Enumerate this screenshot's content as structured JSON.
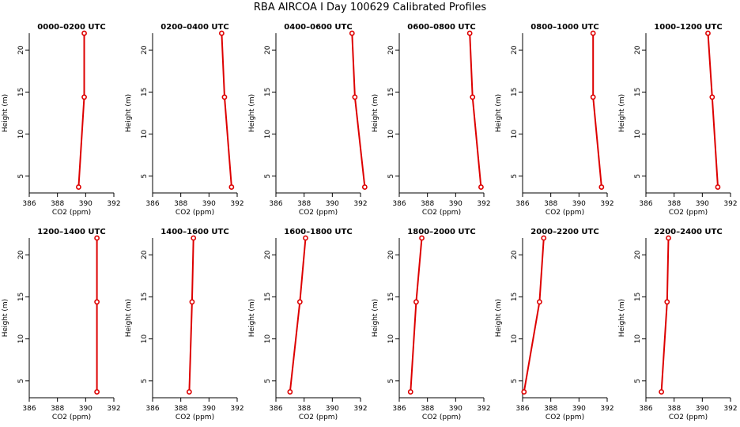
{
  "figure": {
    "title": "RBA AIRCOA I  Day 100629  Calibrated Profiles"
  },
  "colors": {
    "series": "#dd0000",
    "axis": "#000000",
    "background": "#ffffff"
  },
  "chart_data": [
    {
      "type": "line",
      "title": "0000–0200 UTC",
      "xlabel": "CO2 (ppm)",
      "ylabel": "Height (m)",
      "xlim": [
        386,
        392
      ],
      "ylim": [
        3,
        22
      ],
      "xticks": [
        386,
        388,
        390,
        392
      ],
      "yticks": [
        5,
        10,
        15,
        20
      ],
      "grid": false,
      "points": [
        {
          "x": 389.5,
          "y": 3.7
        },
        {
          "x": 389.9,
          "y": 14.4
        },
        {
          "x": 389.9,
          "y": 22
        }
      ]
    },
    {
      "type": "line",
      "title": "0200–0400 UTC",
      "xlabel": "CO2 (ppm)",
      "ylabel": "Height (m)",
      "xlim": [
        386,
        392
      ],
      "ylim": [
        3,
        22
      ],
      "xticks": [
        386,
        388,
        390,
        392
      ],
      "yticks": [
        5,
        10,
        15,
        20
      ],
      "grid": false,
      "points": [
        {
          "x": 391.6,
          "y": 3.7
        },
        {
          "x": 391.1,
          "y": 14.4
        },
        {
          "x": 390.9,
          "y": 22
        }
      ]
    },
    {
      "type": "line",
      "title": "0400–0600 UTC",
      "xlabel": "CO2 (ppm)",
      "ylabel": "Height (m)",
      "xlim": [
        386,
        392
      ],
      "ylim": [
        3,
        22
      ],
      "xticks": [
        386,
        388,
        390,
        392
      ],
      "yticks": [
        5,
        10,
        15,
        20
      ],
      "grid": false,
      "points": [
        {
          "x": 392.3,
          "y": 3.7
        },
        {
          "x": 391.6,
          "y": 14.4
        },
        {
          "x": 391.4,
          "y": 22
        }
      ]
    },
    {
      "type": "line",
      "title": "0600–0800 UTC",
      "xlabel": "CO2 (ppm)",
      "ylabel": "Height (m)",
      "xlim": [
        386,
        392
      ],
      "ylim": [
        3,
        22
      ],
      "xticks": [
        386,
        388,
        390,
        392
      ],
      "yticks": [
        5,
        10,
        15,
        20
      ],
      "grid": false,
      "points": [
        {
          "x": 391.8,
          "y": 3.7
        },
        {
          "x": 391.2,
          "y": 14.4
        },
        {
          "x": 391.0,
          "y": 22
        }
      ]
    },
    {
      "type": "line",
      "title": "0800–1000 UTC",
      "xlabel": "CO2 (ppm)",
      "ylabel": "Height (m)",
      "xlim": [
        386,
        392
      ],
      "ylim": [
        3,
        22
      ],
      "xticks": [
        386,
        388,
        390,
        392
      ],
      "yticks": [
        5,
        10,
        15,
        20
      ],
      "grid": false,
      "points": [
        {
          "x": 391.6,
          "y": 3.7
        },
        {
          "x": 391.0,
          "y": 14.4
        },
        {
          "x": 391.0,
          "y": 22
        }
      ]
    },
    {
      "type": "line",
      "title": "1000–1200 UTC",
      "xlabel": "CO2 (ppm)",
      "ylabel": "Height (m)",
      "xlim": [
        386,
        392
      ],
      "ylim": [
        3,
        22
      ],
      "xticks": [
        386,
        388,
        390,
        392
      ],
      "yticks": [
        5,
        10,
        15,
        20
      ],
      "grid": false,
      "points": [
        {
          "x": 391.1,
          "y": 3.7
        },
        {
          "x": 390.7,
          "y": 14.4
        },
        {
          "x": 390.4,
          "y": 22
        }
      ]
    },
    {
      "type": "line",
      "title": "1200–1400 UTC",
      "xlabel": "CO2 (ppm)",
      "ylabel": "Height (m)",
      "xlim": [
        386,
        392
      ],
      "ylim": [
        3,
        22
      ],
      "xticks": [
        386,
        388,
        390,
        392
      ],
      "yticks": [
        5,
        10,
        15,
        20
      ],
      "grid": false,
      "points": [
        {
          "x": 390.8,
          "y": 3.7
        },
        {
          "x": 390.8,
          "y": 14.4
        },
        {
          "x": 390.8,
          "y": 22
        }
      ]
    },
    {
      "type": "line",
      "title": "1400–1600 UTC",
      "xlabel": "CO2 (ppm)",
      "ylabel": "Height (m)",
      "xlim": [
        386,
        392
      ],
      "ylim": [
        3,
        22
      ],
      "xticks": [
        386,
        388,
        390,
        392
      ],
      "yticks": [
        5,
        10,
        15,
        20
      ],
      "grid": false,
      "points": [
        {
          "x": 388.6,
          "y": 3.7
        },
        {
          "x": 388.8,
          "y": 14.4
        },
        {
          "x": 388.9,
          "y": 22
        }
      ]
    },
    {
      "type": "line",
      "title": "1600–1800 UTC",
      "xlabel": "CO2 (ppm)",
      "ylabel": "Height (m)",
      "xlim": [
        386,
        392
      ],
      "ylim": [
        3,
        22
      ],
      "xticks": [
        386,
        388,
        390,
        392
      ],
      "yticks": [
        5,
        10,
        15,
        20
      ],
      "grid": false,
      "points": [
        {
          "x": 387.0,
          "y": 3.7
        },
        {
          "x": 387.7,
          "y": 14.4
        },
        {
          "x": 388.1,
          "y": 22
        }
      ]
    },
    {
      "type": "line",
      "title": "1800–2000 UTC",
      "xlabel": "CO2 (ppm)",
      "ylabel": "Height (m)",
      "xlim": [
        386,
        392
      ],
      "ylim": [
        3,
        22
      ],
      "xticks": [
        386,
        388,
        390,
        392
      ],
      "yticks": [
        5,
        10,
        15,
        20
      ],
      "grid": false,
      "points": [
        {
          "x": 386.8,
          "y": 3.7
        },
        {
          "x": 387.2,
          "y": 14.4
        },
        {
          "x": 387.6,
          "y": 22
        }
      ]
    },
    {
      "type": "line",
      "title": "2000–2200 UTC",
      "xlabel": "CO2 (ppm)",
      "ylabel": "Height (m)",
      "xlim": [
        386,
        392
      ],
      "ylim": [
        3,
        22
      ],
      "xticks": [
        386,
        388,
        390,
        392
      ],
      "yticks": [
        5,
        10,
        15,
        20
      ],
      "grid": false,
      "points": [
        {
          "x": 386.1,
          "y": 3.7
        },
        {
          "x": 387.2,
          "y": 14.4
        },
        {
          "x": 387.5,
          "y": 22
        }
      ]
    },
    {
      "type": "line",
      "title": "2200–2400 UTC",
      "xlabel": "CO2 (ppm)",
      "ylabel": "Height (m)",
      "xlim": [
        386,
        392
      ],
      "ylim": [
        3,
        22
      ],
      "xticks": [
        386,
        388,
        390,
        392
      ],
      "yticks": [
        5,
        10,
        15,
        20
      ],
      "grid": false,
      "points": [
        {
          "x": 387.1,
          "y": 3.7
        },
        {
          "x": 387.5,
          "y": 14.4
        },
        {
          "x": 387.6,
          "y": 22
        }
      ]
    }
  ]
}
